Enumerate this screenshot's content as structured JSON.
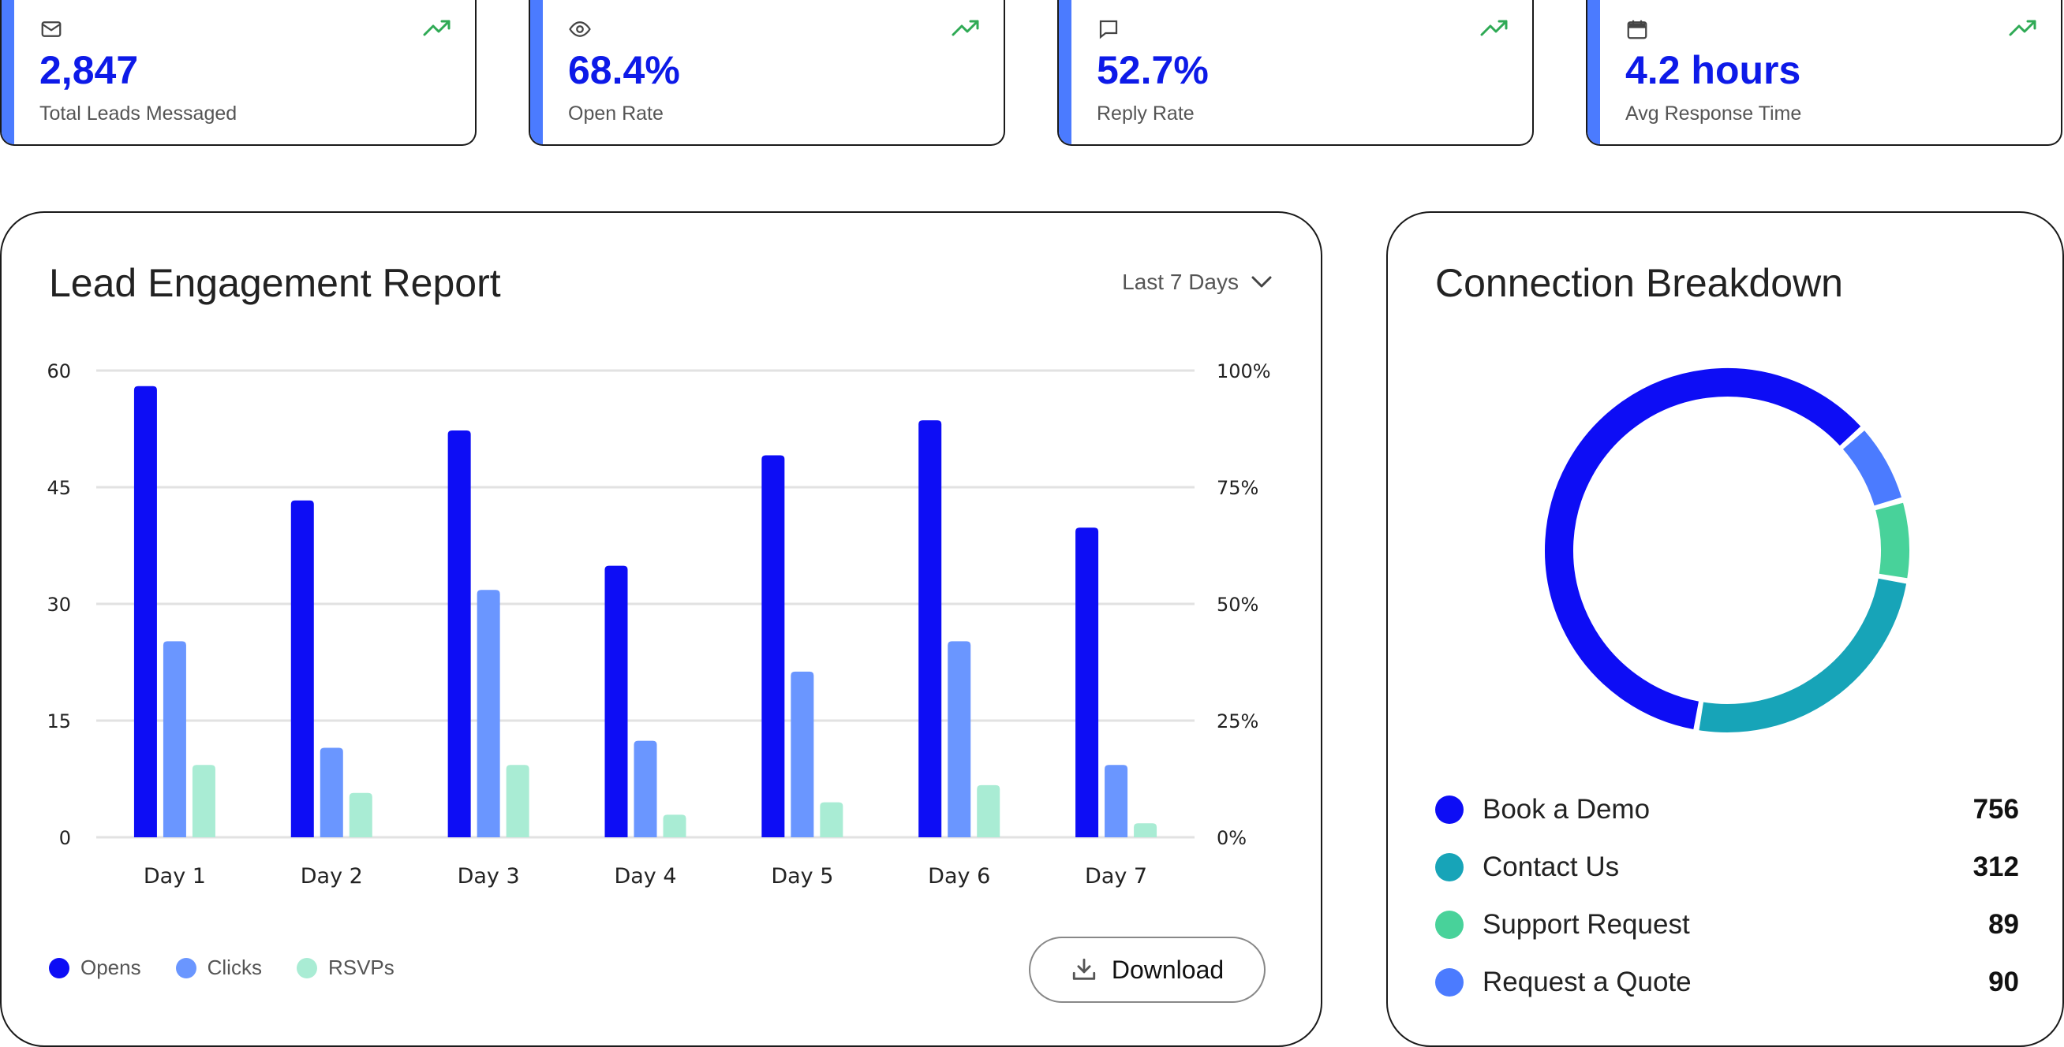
{
  "stats": [
    {
      "icon": "mail-icon",
      "value": "2,847",
      "label": "Total Leads Messaged",
      "trend": "up"
    },
    {
      "icon": "eye-icon",
      "value": "68.4%",
      "label": "Open Rate",
      "trend": "up"
    },
    {
      "icon": "message-icon",
      "value": "52.7%",
      "label": "Reply Rate",
      "trend": "up"
    },
    {
      "icon": "calendar-icon",
      "value": "4.2 hours",
      "label": "Avg Response Time",
      "trend": "up"
    }
  ],
  "engagement": {
    "title": "Lead Engagement Report",
    "range_label": "Last 7 Days",
    "download_label": "Download"
  },
  "chart_data": {
    "type": "bar",
    "categories": [
      "Day 1",
      "Day 2",
      "Day 3",
      "Day 4",
      "Day 5",
      "Day 6",
      "Day 7"
    ],
    "series": [
      {
        "name": "Opens",
        "color": "#0d0df5",
        "values": [
          58,
          43.3,
          52.3,
          34.9,
          49.1,
          53.6,
          39.8
        ]
      },
      {
        "name": "Clicks",
        "color": "#6a96ff",
        "values": [
          25.2,
          11.5,
          31.8,
          12.4,
          21.3,
          25.2,
          9.3
        ]
      },
      {
        "name": "RSVPs",
        "color": "#a9ecd4",
        "values": [
          9.3,
          5.7,
          9.3,
          2.9,
          4.5,
          6.7,
          1.8
        ]
      }
    ],
    "ylim": [
      0,
      60
    ],
    "yticks": [
      "0",
      "15",
      "30",
      "45",
      "60"
    ],
    "y2ticks": [
      "0%",
      "25%",
      "50%",
      "75%",
      "100%"
    ],
    "grid": true,
    "legend": "bottom-left"
  },
  "breakdown": {
    "title": "Connection Breakdown",
    "items": [
      {
        "label": "Book a Demo",
        "value": "756",
        "color": "#0d0df5"
      },
      {
        "label": "Contact Us",
        "value": "312",
        "color": "#17a4b8"
      },
      {
        "label": "Support Request",
        "value": "89",
        "color": "#48d29a"
      },
      {
        "label": "Request a Quote",
        "value": "90",
        "color": "#4b7bff"
      }
    ]
  }
}
